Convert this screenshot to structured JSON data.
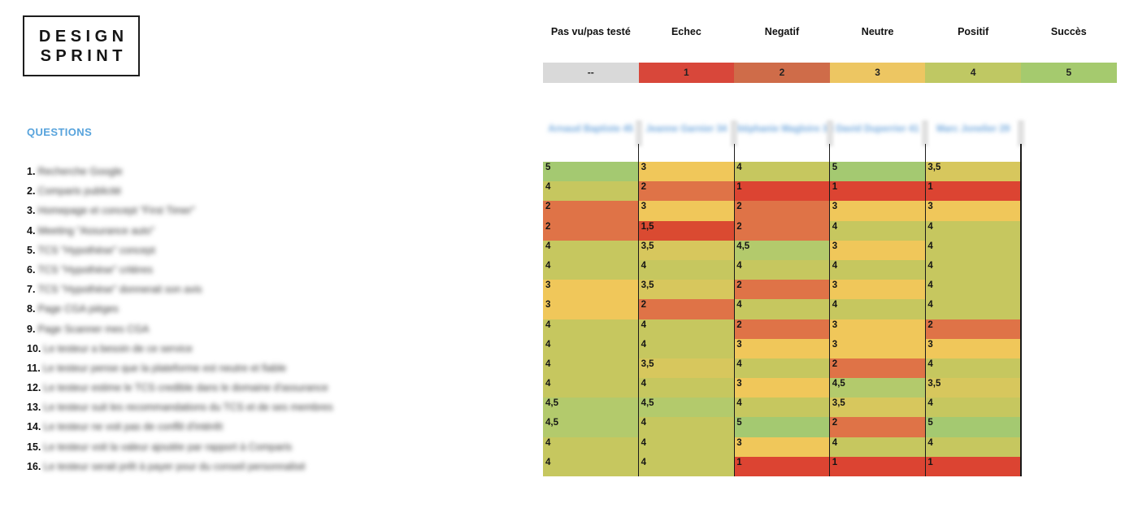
{
  "logo": {
    "line1": "DESIGN",
    "line2": "SPRINT"
  },
  "legend": {
    "items": [
      {
        "label": "Pas vu/pas testé",
        "value": "--",
        "color": "#d9d9d9"
      },
      {
        "label": "Echec",
        "value": "1",
        "color": "#d8473a"
      },
      {
        "label": "Negatif",
        "value": "2",
        "color": "#cf6c49"
      },
      {
        "label": "Neutre",
        "value": "3",
        "color": "#edc662"
      },
      {
        "label": "Positif",
        "value": "4",
        "color": "#bfc863"
      },
      {
        "label": "Succès",
        "value": "5",
        "color": "#a5ca6e"
      }
    ]
  },
  "questions_title": "QUESTIONS",
  "participants": [
    {
      "name": "Arnaud Baptiste 45"
    },
    {
      "name": "Jeanne Garnier 34"
    },
    {
      "name": "Stéphanie Magloire 38"
    },
    {
      "name": "David Duperrier 41"
    },
    {
      "name": "Marc Jonelier 29"
    }
  ],
  "questions": [
    {
      "num": "1.",
      "text": "Recherche Google"
    },
    {
      "num": "2.",
      "text": "Comparis publicité"
    },
    {
      "num": "3.",
      "text": "Homepage et concept \"First Timer\""
    },
    {
      "num": "4.",
      "text": "Meeting \"Assurance auto\""
    },
    {
      "num": "5.",
      "text": "TCS \"Hypothèse\" concept"
    },
    {
      "num": "6.",
      "text": "TCS \"Hypothèse\" critères"
    },
    {
      "num": "7.",
      "text": "TCS \"Hypothèse\" donnerait son avis"
    },
    {
      "num": "8.",
      "text": "Page CGA pièges"
    },
    {
      "num": "9.",
      "text": "Page Scanner mes CGA"
    },
    {
      "num": "10.",
      "text": "Le testeur a besoin de ce service"
    },
    {
      "num": "11.",
      "text": "Le testeur pense que la plateforme est neutre et fiable"
    },
    {
      "num": "12.",
      "text": "Le testeur estime le TCS credible dans le domaine d'assurance"
    },
    {
      "num": "13.",
      "text": "Le testeur suit les recommandations du TCS et de ses membres"
    },
    {
      "num": "14.",
      "text": "Le  testeur ne voit pas de conflit d'intérêt"
    },
    {
      "num": "15.",
      "text": "Le testeur voit la valeur ajoutée par rapport à Comparis"
    },
    {
      "num": "16.",
      "text": "Le testeur serait prêt à payer pour du conseil personnalisé"
    }
  ],
  "grid": {
    "rows": [
      [
        "5",
        "3",
        "4",
        "5",
        "3,5"
      ],
      [
        "4",
        "2",
        "1",
        "1",
        "1"
      ],
      [
        "2",
        "3",
        "2",
        "3",
        "3"
      ],
      [
        "2",
        "1,5",
        "2",
        "4",
        "4"
      ],
      [
        "4",
        "3,5",
        "4,5",
        "3",
        "4"
      ],
      [
        "4",
        "4",
        "4",
        "4",
        "4"
      ],
      [
        "3",
        "3,5",
        "2",
        "3",
        "4"
      ],
      [
        "3",
        "2",
        "4",
        "4",
        "4"
      ],
      [
        "4",
        "4",
        "2",
        "3",
        "2"
      ],
      [
        "4",
        "4",
        "3",
        "3",
        "3"
      ],
      [
        "4",
        "3,5",
        "4",
        "2",
        "4"
      ],
      [
        "4",
        "4",
        "3",
        "4,5",
        "3,5"
      ],
      [
        "4,5",
        "4,5",
        "4",
        "3,5",
        "4"
      ],
      [
        "4,5",
        "4",
        "5",
        "2",
        "5"
      ],
      [
        "4",
        "4",
        "3",
        "4",
        "4"
      ],
      [
        "4",
        "4",
        "1",
        "1",
        "1"
      ]
    ]
  },
  "value_colors": {
    "--": "#d9d9d9",
    "1": "#dc4432",
    "1,5": "#da4a31",
    "2": "#df7347",
    "3": "#f0c75a",
    "3,5": "#d7c75d",
    "4": "#c6c75f",
    "4,5": "#b3ca6c",
    "5": "#a4c971"
  },
  "chart_data": {
    "type": "heatmap",
    "title": "",
    "rows": [
      "1",
      "2",
      "3",
      "4",
      "5",
      "6",
      "7",
      "8",
      "9",
      "10",
      "11",
      "12",
      "13",
      "14",
      "15",
      "16"
    ],
    "columns": [
      "participant-1",
      "participant-2",
      "participant-3",
      "participant-4",
      "participant-5"
    ],
    "values": [
      [
        5,
        3,
        4,
        5,
        3.5
      ],
      [
        4,
        2,
        1,
        1,
        1
      ],
      [
        2,
        3,
        2,
        3,
        3
      ],
      [
        2,
        1.5,
        2,
        4,
        4
      ],
      [
        4,
        3.5,
        4.5,
        3,
        4
      ],
      [
        4,
        4,
        4,
        4,
        4
      ],
      [
        3,
        3.5,
        2,
        3,
        4
      ],
      [
        3,
        2,
        4,
        4,
        4
      ],
      [
        4,
        4,
        2,
        3,
        2
      ],
      [
        4,
        4,
        3,
        3,
        3
      ],
      [
        4,
        3.5,
        4,
        2,
        4
      ],
      [
        4,
        4,
        3,
        4.5,
        3.5
      ],
      [
        4.5,
        4.5,
        4,
        3.5,
        4
      ],
      [
        4.5,
        4,
        5,
        2,
        5
      ],
      [
        4,
        4,
        3,
        4,
        4
      ],
      [
        4,
        4,
        1,
        1,
        1
      ]
    ],
    "scale": [
      {
        "value": "--",
        "label": "Pas vu/pas testé"
      },
      {
        "value": "1",
        "label": "Echec"
      },
      {
        "value": "2",
        "label": "Negatif"
      },
      {
        "value": "3",
        "label": "Neutre"
      },
      {
        "value": "4",
        "label": "Positif"
      },
      {
        "value": "5",
        "label": "Succès"
      }
    ],
    "legend_position": "top",
    "grid": false
  }
}
